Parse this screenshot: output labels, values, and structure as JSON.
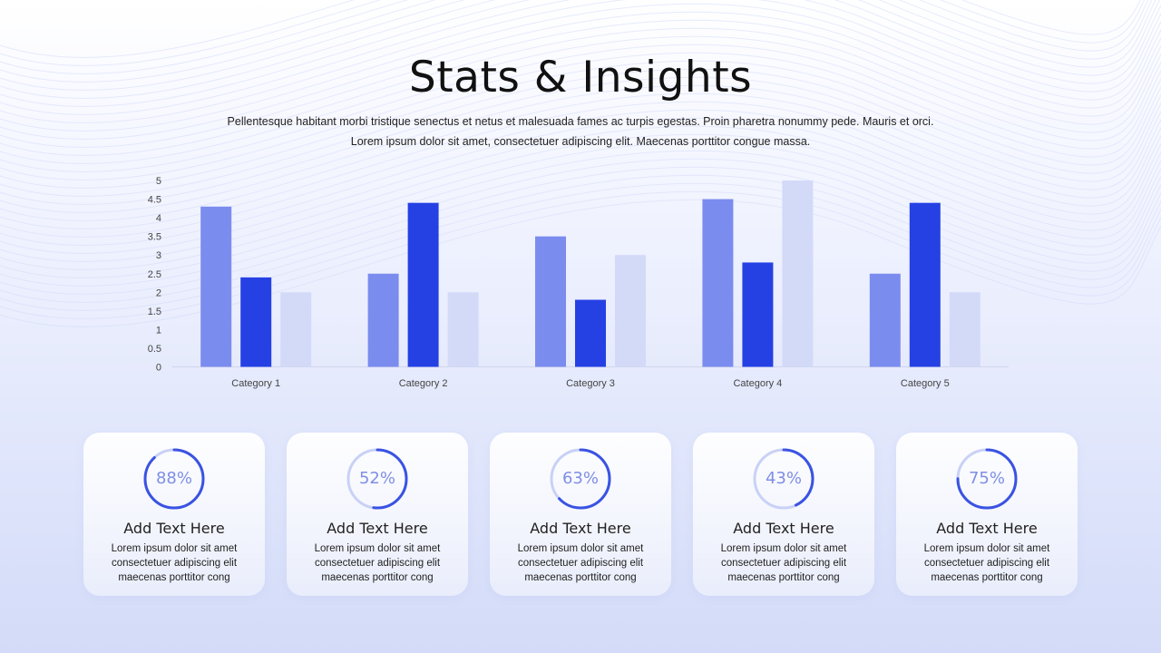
{
  "title": "Stats & Insights",
  "subtitle_lines": [
    "Pellentesque habitant morbi tristique senectus et netus et malesuada fames ac turpis egestas. Proin pharetra nonummy pede. Mauris et orci.",
    "Lorem ipsum dolor sit amet, consectetuer adipiscing elit. Maecenas porttitor congue massa."
  ],
  "colors": {
    "series_1": "#7b8cef",
    "series_2": "#2541e4",
    "series_3": "#d3daf8",
    "ring_track": "#c9d1f6",
    "ring_progress": "#3a53e3"
  },
  "chart_data": {
    "type": "bar",
    "categories": [
      "Category 1",
      "Category 2",
      "Category 3",
      "Category 4",
      "Category 5"
    ],
    "series": [
      {
        "values": [
          4.3,
          2.5,
          3.5,
          4.5,
          2.5
        ]
      },
      {
        "values": [
          2.4,
          4.4,
          1.8,
          2.8,
          4.4
        ]
      },
      {
        "values": [
          2.0,
          2.0,
          3.0,
          5.0,
          2.0
        ]
      }
    ],
    "y_ticks": [
      "0",
      "0.5",
      "1",
      "1.5",
      "2",
      "2.5",
      "3",
      "3.5",
      "4",
      "4.5",
      "5"
    ],
    "ylim": [
      0,
      5
    ],
    "grid": false,
    "legend": "none"
  },
  "cards": [
    {
      "percent": 88,
      "percent_label": "88%",
      "title": "Add Text Here",
      "body_lines": [
        "Lorem ipsum dolor sit amet",
        "consectetuer adipiscing elit",
        "maecenas porttitor cong"
      ]
    },
    {
      "percent": 52,
      "percent_label": "52%",
      "title": "Add Text Here",
      "body_lines": [
        "Lorem ipsum dolor sit amet",
        "consectetuer adipiscing elit",
        "maecenas porttitor cong"
      ]
    },
    {
      "percent": 63,
      "percent_label": "63%",
      "title": "Add Text Here",
      "body_lines": [
        "Lorem ipsum dolor sit amet",
        "consectetuer adipiscing elit",
        "maecenas porttitor cong"
      ]
    },
    {
      "percent": 43,
      "percent_label": "43%",
      "title": "Add Text Here",
      "body_lines": [
        "Lorem ipsum dolor sit amet",
        "consectetuer adipiscing elit",
        "maecenas porttitor cong"
      ]
    },
    {
      "percent": 75,
      "percent_label": "75%",
      "title": "Add Text Here",
      "body_lines": [
        "Lorem ipsum dolor sit amet",
        "consectetuer adipiscing elit",
        "maecenas porttitor cong"
      ]
    }
  ]
}
